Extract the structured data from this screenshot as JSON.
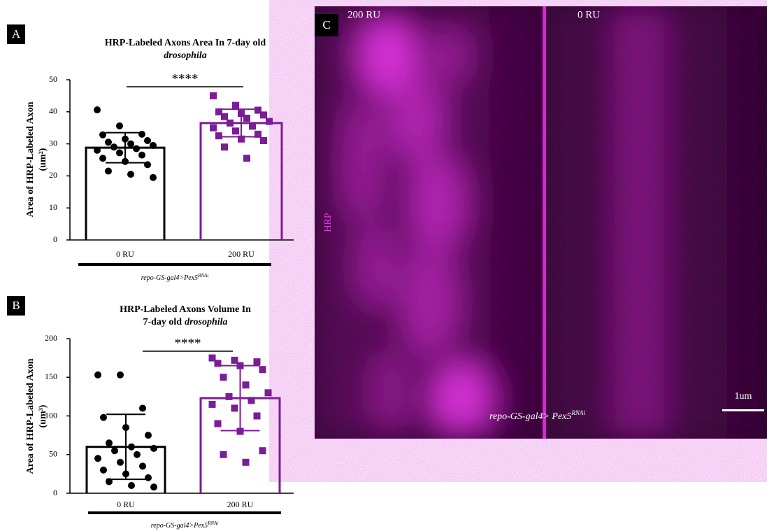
{
  "chart_data": [
    {
      "type": "bar",
      "panel": "A",
      "title": [
        "HRP-Labeled Axons Area In 7-day old"
      ],
      "title_italic": "drosophila",
      "ylabel": "Area of HRP-Labeled Axon",
      "ylabel_unit": "(um²)",
      "categories": [
        "0 RU",
        "200 RU"
      ],
      "values": [
        28.8,
        36.5
      ],
      "errors": [
        4.7,
        4.3
      ],
      "points": [
        [
          40.6,
          35.6,
          33.0,
          32.8,
          31.5,
          31.0,
          30.5,
          30.0,
          29.5,
          29.0,
          28.5,
          28.0,
          27.2,
          26.5,
          25.5,
          24.5,
          23.5,
          21.5,
          20.5,
          19.5
        ],
        [
          45,
          42,
          40.5,
          40,
          39.5,
          39,
          38.5,
          38,
          37,
          36.5,
          35.5,
          35,
          34,
          33,
          32.5,
          31.5,
          31,
          29,
          25.5
        ]
      ],
      "colors": [
        "#000000",
        "#7b1c98"
      ],
      "ylim": [
        0,
        50
      ],
      "yticks": [
        0,
        10,
        20,
        30,
        40,
        50
      ],
      "significance": "****",
      "xlabel": "repo-GS-gal4>Pex5",
      "xlabel_sup": "RNAi"
    },
    {
      "type": "bar",
      "panel": "B",
      "title": [
        "HRP-Labeled Axons Volume In",
        "7-day old"
      ],
      "title_italic": "drosophila",
      "ylabel": "Area of HRP-Labeled Axon",
      "ylabel_unit": "(um³)",
      "categories": [
        "0 RU",
        "200 RU"
      ],
      "values": [
        60,
        123
      ],
      "errors": [
        42,
        42
      ],
      "points": [
        [
          153,
          153,
          110,
          98,
          85,
          75,
          65,
          60,
          58,
          55,
          50,
          45,
          40,
          35,
          30,
          25,
          20,
          15,
          10,
          8
        ],
        [
          175,
          172,
          170,
          168,
          165,
          160,
          150,
          140,
          130,
          125,
          120,
          115,
          110,
          100,
          90,
          80,
          55,
          50,
          40
        ]
      ],
      "colors": [
        "#000000",
        "#7b1c98"
      ],
      "ylim": [
        0,
        200
      ],
      "yticks": [
        0,
        50,
        100,
        150,
        200
      ],
      "significance": "****",
      "xlabel": "repo-GS-gal4>Pex5",
      "xlabel_sup": "RNAi"
    }
  ],
  "panel_c": {
    "label": "C",
    "left_label": "200 RU",
    "right_label": "0 RU",
    "channel": "HRP",
    "genotype": "repo-GS-gal4> Pex5",
    "genotype_sup": "RNAi",
    "scale_bar": "1um"
  }
}
